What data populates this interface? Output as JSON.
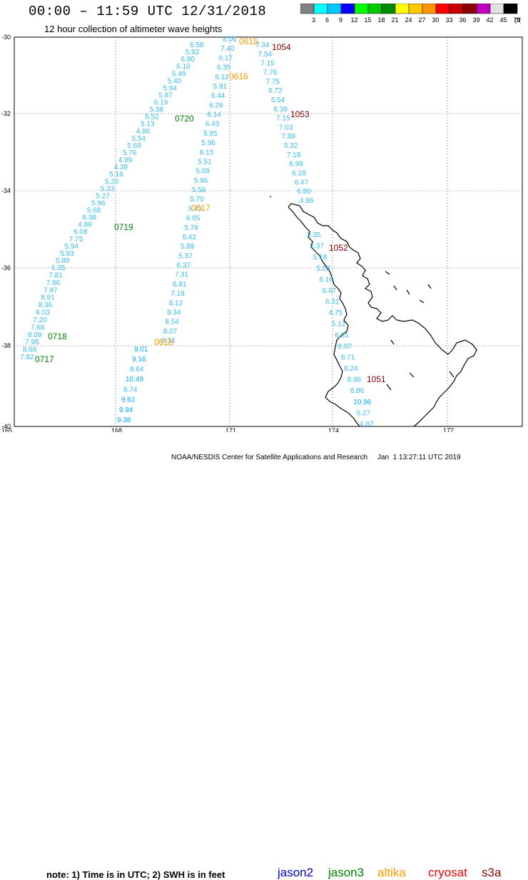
{
  "header": {
    "title": "00:00 – 11:59 UTC 12/31/2018",
    "subtitle": "12 hour collection of altimeter wave heights"
  },
  "colorbar": {
    "colors": [
      "#808080",
      "#00ffff",
      "#00c8ff",
      "#0000ff",
      "#00ff00",
      "#00c800",
      "#008c00",
      "#ffff00",
      "#ffc800",
      "#ff9600",
      "#ff0000",
      "#c80000",
      "#8b0000",
      "#c000c0",
      "#e0e0e0",
      "#000000"
    ],
    "labels": [
      "3",
      "6",
      "9",
      "12",
      "15",
      "18",
      "21",
      "24",
      "27",
      "30",
      "33",
      "36",
      "39",
      "42",
      "45",
      "70",
      "(ft)"
    ]
  },
  "axes": {
    "lat_labels": [
      "-30",
      "-32",
      "-34",
      "-36",
      "-38",
      "-40"
    ],
    "lon_labels": [
      "165",
      "168",
      "171",
      "174",
      "177"
    ]
  },
  "legend": {
    "note": "note:  1) Time is in UTC;  2) SWH is in feet",
    "satellites": [
      {
        "name": "jason2",
        "color": "#0000cc"
      },
      {
        "name": "jason3",
        "color": "#008000"
      },
      {
        "name": "altika",
        "color": "#ff9900"
      },
      {
        "name": "cryosat",
        "color": "#ee0000"
      },
      {
        "name": "s3a",
        "color": "#880000"
      }
    ]
  },
  "credit": "NOAA/NESDIS Center for Satellite Applications and Research     Jan  1 13:27:11 UTC 2019",
  "pass_labels": [
    {
      "text": "0615",
      "sat": "altika"
    },
    {
      "text": "0616",
      "sat": "altika"
    },
    {
      "text": "0617",
      "sat": "altika"
    },
    {
      "text": "0618",
      "sat": "altika"
    },
    {
      "text": "0720",
      "sat": "jason3"
    },
    {
      "text": "0719",
      "sat": "jason3"
    },
    {
      "text": "0718",
      "sat": "jason3"
    },
    {
      "text": "0717",
      "sat": "jason3"
    },
    {
      "text": "1054",
      "sat": "s3a"
    },
    {
      "text": "1053",
      "sat": "s3a"
    },
    {
      "text": "1052",
      "sat": "s3a"
    },
    {
      "text": "1051",
      "sat": "s3a"
    }
  ],
  "tracks": [
    {
      "name": "jason3-0720",
      "values": [
        "6.58",
        "5.92",
        "6.80",
        "6.10",
        "5.49",
        "5.40",
        "5.94",
        "5.97",
        "6.19",
        "5.38",
        "5.52",
        "5.13",
        "4.86",
        "5.54",
        "5.69",
        "5.76",
        "4.99",
        "4.39",
        "5.16",
        "5.20",
        "5.33",
        "5.27",
        "5.96",
        "5.68",
        "6.38",
        "4.89",
        "6.08",
        "7.75",
        "5.94",
        "5.93",
        "5.89"
      ]
    },
    {
      "name": "jason3-0719",
      "values": [
        "6.35",
        "7.81",
        "7.96",
        "7.97",
        "8.91",
        "8.36",
        "8.03",
        "7.20",
        "7.68",
        "8.09",
        "7.95",
        "8.69",
        "7.82"
      ]
    },
    {
      "name": "altika-0616",
      "values": [
        "8.06",
        "7.40",
        "6.17",
        "6.35",
        "6.12",
        "5.91",
        "6.44",
        "6.26",
        "6.14",
        "6.43",
        "5.95",
        "5.96",
        "6.15",
        "5.51",
        "5.69",
        "5.96",
        "5.56",
        "5.70",
        "5.73",
        "6.05",
        "5.78",
        "6.42",
        "5.89",
        "5.37",
        "6.37",
        "7.31",
        "6.81",
        "7.19",
        "8.12",
        "8.34",
        "8.54",
        "8.07",
        "8.34"
      ]
    },
    {
      "name": "altika-0618",
      "values": [
        "9.01",
        "9.16",
        "8.64"
      ]
    },
    {
      "name": "jason2-0618",
      "values": [
        "10.49",
        "8.74",
        "9.61",
        "9.94",
        "9.38"
      ]
    },
    {
      "name": "s3a-1054",
      "values": [
        "7.34",
        "7.54",
        "7.15",
        "7.76",
        "7.75",
        "6.72",
        "5.54",
        "6.39",
        "7.15",
        "7.03",
        "7.89",
        "5.32",
        "7.18",
        "6.99",
        "6.18",
        "6.47",
        "6.80",
        "4.86"
      ]
    },
    {
      "name": "s3a-1052",
      "values": [
        "3.35",
        "5.37",
        "5.18",
        "5.20",
        "6.16",
        "6.67",
        "6.31",
        "4.75",
        "5.12",
        "6.35",
        "8.07",
        "8.71",
        "8.24",
        "8.98",
        "6.86",
        "10.96",
        "5.27",
        "4.87"
      ]
    }
  ]
}
